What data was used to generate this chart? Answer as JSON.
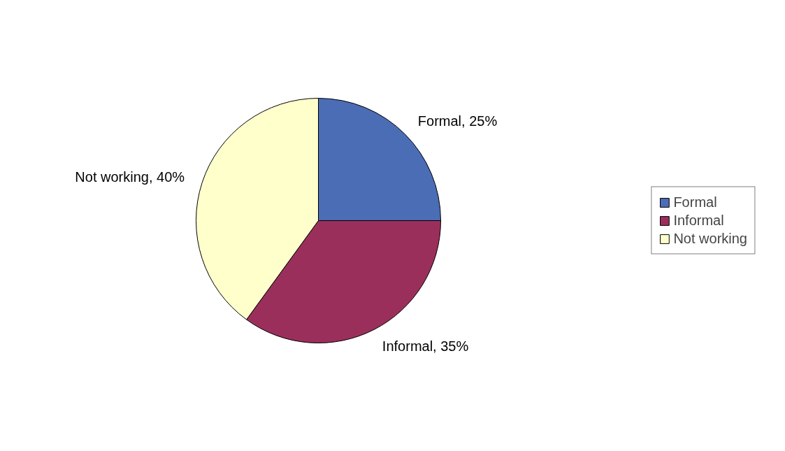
{
  "chart_data": {
    "type": "pie",
    "categories": [
      "Formal",
      "Informal",
      "Not working"
    ],
    "values": [
      25,
      35,
      40
    ],
    "colors": [
      "#4a6db5",
      "#9b2f5c",
      "#ffffcc"
    ],
    "value_labels": [
      "Formal, 25%",
      "Informal, 35%",
      "Not working, 40%"
    ],
    "legend": "right"
  }
}
